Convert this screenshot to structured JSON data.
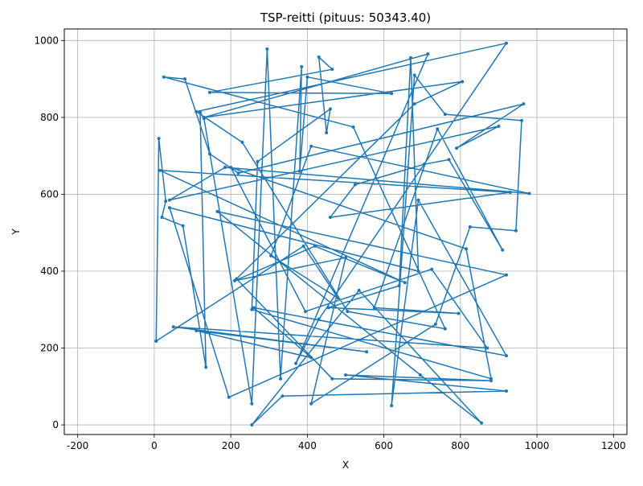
{
  "chart_data": {
    "type": "line",
    "title": "TSP-reitti (pituus: 50343.40)",
    "xlabel": "X",
    "ylabel": "Y",
    "xlim": [
      -235,
      1235
    ],
    "ylim": [
      -25,
      1030
    ],
    "xticks": [
      -200,
      0,
      200,
      400,
      600,
      800,
      1000,
      1200
    ],
    "yticks": [
      0,
      200,
      400,
      600,
      800,
      1000
    ],
    "grid": true,
    "color": "#1f77b4",
    "series": [
      {
        "marker": "point",
        "points": [
          [
            5,
            218
          ],
          [
            12,
            745
          ],
          [
            30,
            582
          ],
          [
            20,
            540
          ],
          [
            75,
            518
          ],
          [
            135,
            150
          ],
          [
            120,
            813
          ],
          [
            130,
            797
          ],
          [
            255,
            55
          ],
          [
            295,
            978
          ],
          [
            330,
            120
          ],
          [
            385,
            932
          ],
          [
            380,
            660
          ],
          [
            400,
            905
          ],
          [
            620,
            862
          ],
          [
            145,
            865
          ],
          [
            465,
            925
          ],
          [
            430,
            957
          ],
          [
            450,
            760
          ],
          [
            460,
            822
          ],
          [
            270,
            685
          ],
          [
            255,
            300
          ],
          [
            880,
            120
          ],
          [
            815,
            458
          ],
          [
            200,
            670
          ],
          [
            395,
            295
          ],
          [
            725,
            405
          ],
          [
            870,
            200
          ],
          [
            50,
            255
          ],
          [
            555,
            190
          ],
          [
            110,
            245
          ],
          [
            410,
            175
          ],
          [
            260,
            305
          ],
          [
            920,
            180
          ],
          [
            690,
            585
          ],
          [
            620,
            50
          ],
          [
            680,
            910
          ],
          [
            760,
            808
          ],
          [
            960,
            792
          ],
          [
            945,
            505
          ],
          [
            825,
            515
          ],
          [
            735,
            262
          ],
          [
            410,
            55
          ],
          [
            500,
            435
          ],
          [
            210,
            375
          ],
          [
            420,
            465
          ],
          [
            655,
            370
          ],
          [
            15,
            662
          ],
          [
            930,
            605
          ],
          [
            460,
            540
          ],
          [
            525,
            625
          ],
          [
            705,
            678
          ],
          [
            770,
            690
          ],
          [
            910,
            455
          ],
          [
            740,
            770
          ],
          [
            575,
            305
          ],
          [
            795,
            290
          ],
          [
            455,
            305
          ],
          [
            640,
            362
          ],
          [
            670,
            955
          ],
          [
            690,
            400
          ],
          [
            40,
            565
          ],
          [
            195,
            72
          ],
          [
            920,
            390
          ],
          [
            165,
            555
          ],
          [
            695,
            130
          ],
          [
            855,
            5
          ],
          [
            535,
            350
          ],
          [
            255,
            0
          ],
          [
            335,
            75
          ],
          [
            920,
            88
          ],
          [
            500,
            130
          ],
          [
            880,
            115
          ],
          [
            465,
            120
          ],
          [
            215,
            380
          ],
          [
            680,
            835
          ],
          [
            805,
            893
          ],
          [
            130,
            800
          ],
          [
            715,
            965
          ],
          [
            370,
            160
          ],
          [
            430,
            275
          ],
          [
            920,
            993
          ],
          [
            110,
            815
          ],
          [
            230,
            735
          ],
          [
            505,
            295
          ],
          [
            760,
            250
          ],
          [
            520,
            775
          ],
          [
            25,
            905
          ],
          [
            80,
            900
          ],
          [
            145,
            705
          ],
          [
            220,
            655
          ],
          [
            965,
            835
          ],
          [
            790,
            720
          ],
          [
            900,
            777
          ],
          [
            40,
            585
          ],
          [
            185,
            670
          ],
          [
            980,
            602
          ],
          [
            410,
            725
          ],
          [
            305,
            440
          ],
          [
            480,
            330
          ],
          [
            390,
            465
          ],
          [
            5,
            218
          ]
        ]
      }
    ]
  }
}
